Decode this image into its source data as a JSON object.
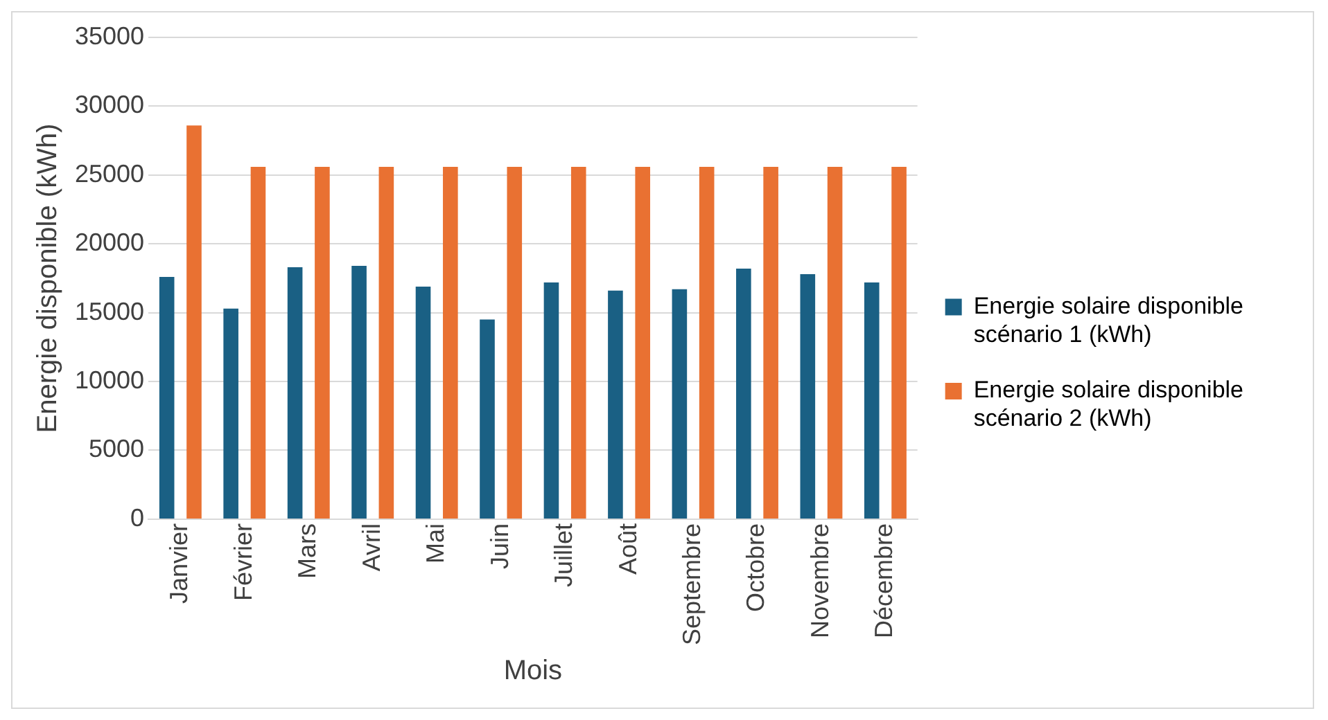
{
  "chart_data": {
    "type": "bar",
    "xlabel": "Mois",
    "ylabel": "Energie disponible (kWh)",
    "categories": [
      "Janvier",
      "Février",
      "Mars",
      "Avril",
      "Mai",
      "Juin",
      "Juillet",
      "Août",
      "Septembre",
      "Octobre",
      "Novembre",
      "Décembre"
    ],
    "series": [
      {
        "name": "Energie solaire disponible scénario 1 (kWh)",
        "color": "#1a6084",
        "values": [
          17600,
          15300,
          18300,
          18400,
          16900,
          14500,
          17200,
          16600,
          16700,
          18200,
          17800,
          17200
        ]
      },
      {
        "name": "Energie solaire disponible scénario 2 (kWh)",
        "color": "#e97132",
        "values": [
          28600,
          25600,
          25600,
          25600,
          25600,
          25600,
          25600,
          25600,
          25600,
          25600,
          25600,
          25600
        ]
      }
    ],
    "ylim": [
      0,
      35000
    ],
    "yticks": [
      0,
      5000,
      10000,
      15000,
      20000,
      25000,
      30000,
      35000
    ],
    "grid": "y",
    "legend": "right"
  }
}
